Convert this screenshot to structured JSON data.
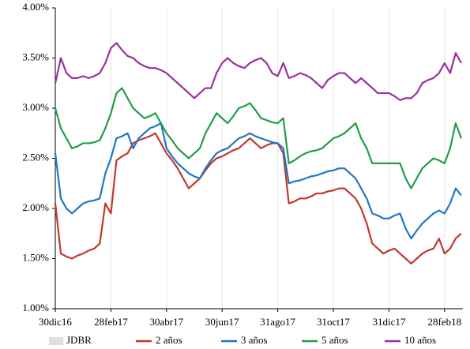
{
  "chart_data": {
    "type": "line",
    "categories": [
      "30dic16",
      null,
      null,
      null,
      null,
      null,
      null,
      null,
      null,
      null,
      "28feb17",
      null,
      null,
      null,
      null,
      null,
      null,
      null,
      null,
      null,
      "30abr17",
      null,
      null,
      null,
      null,
      null,
      null,
      null,
      null,
      null,
      "30jun17",
      null,
      null,
      null,
      null,
      null,
      null,
      null,
      null,
      null,
      "31ago17",
      null,
      null,
      null,
      null,
      null,
      null,
      null,
      null,
      null,
      "31oct17",
      null,
      null,
      null,
      null,
      null,
      null,
      null,
      null,
      null,
      "31dic17",
      null,
      null,
      null,
      null,
      null,
      null,
      null,
      null,
      null,
      "28feb18",
      null,
      null,
      null
    ],
    "ylim": [
      1,
      4
    ],
    "yticks": [
      {
        "value": 1,
        "label": "1.00%"
      },
      {
        "value": 1.5,
        "label": "1.50%"
      },
      {
        "value": 2,
        "label": "2.00%"
      },
      {
        "value": 2.5,
        "label": "2.50%"
      },
      {
        "value": 3,
        "label": "3.00%"
      },
      {
        "value": 3.5,
        "label": "3.50%"
      },
      {
        "value": 4,
        "label": "4.00%"
      }
    ],
    "vertical_grid": true,
    "series": [
      {
        "name": "JDBR",
        "color": "#e0e0e0",
        "values": [
          null,
          null,
          null,
          null,
          null,
          null,
          null,
          null,
          null,
          null,
          null,
          null,
          null,
          null,
          null,
          null,
          null,
          null,
          null,
          null,
          null,
          null,
          null,
          null,
          null,
          null,
          null,
          null,
          null,
          null,
          null,
          null,
          null,
          null,
          null,
          null,
          null,
          null,
          null,
          null,
          null,
          null,
          null,
          null,
          null,
          null,
          null,
          null,
          null,
          null,
          null,
          null,
          null,
          null,
          null,
          null,
          null,
          null,
          null,
          null,
          null,
          null,
          null,
          null,
          null,
          null,
          null,
          null,
          null,
          null,
          null,
          null,
          null,
          null
        ]
      },
      {
        "name": "2 años",
        "color": "#c0392b",
        "values": [
          2.05,
          1.55,
          1.52,
          1.5,
          1.53,
          1.55,
          1.58,
          1.6,
          1.65,
          2.05,
          1.95,
          2.48,
          2.52,
          2.55,
          2.65,
          2.68,
          2.7,
          2.72,
          2.75,
          2.65,
          2.55,
          2.48,
          2.4,
          2.3,
          2.2,
          2.25,
          2.3,
          2.38,
          2.45,
          2.5,
          2.52,
          2.55,
          2.58,
          2.6,
          2.65,
          2.7,
          2.65,
          2.6,
          2.63,
          2.65,
          2.65,
          2.55,
          2.05,
          2.07,
          2.1,
          2.1,
          2.12,
          2.15,
          2.15,
          2.17,
          2.18,
          2.2,
          2.2,
          2.15,
          2.1,
          2.0,
          1.85,
          1.65,
          1.6,
          1.55,
          1.58,
          1.6,
          1.55,
          1.5,
          1.45,
          1.5,
          1.55,
          1.58,
          1.6,
          1.7,
          1.55,
          1.6,
          1.7,
          1.75
        ]
      },
      {
        "name": "3 años",
        "color": "#1f77c4",
        "values": [
          2.55,
          2.1,
          2.0,
          1.95,
          2.0,
          2.05,
          2.07,
          2.08,
          2.1,
          2.35,
          2.5,
          2.7,
          2.72,
          2.75,
          2.6,
          2.7,
          2.75,
          2.8,
          2.82,
          2.85,
          2.6,
          2.52,
          2.45,
          2.4,
          2.35,
          2.32,
          2.3,
          2.4,
          2.48,
          2.55,
          2.58,
          2.6,
          2.65,
          2.7,
          2.72,
          2.75,
          2.72,
          2.7,
          2.68,
          2.66,
          2.65,
          2.6,
          2.25,
          2.27,
          2.28,
          2.3,
          2.32,
          2.33,
          2.35,
          2.37,
          2.38,
          2.4,
          2.4,
          2.35,
          2.3,
          2.2,
          2.1,
          1.95,
          1.93,
          1.9,
          1.9,
          1.93,
          1.95,
          1.8,
          1.7,
          1.78,
          1.85,
          1.9,
          1.95,
          1.98,
          1.95,
          2.05,
          2.2,
          2.13
        ]
      },
      {
        "name": "5 años",
        "color": "#1e9e48",
        "values": [
          3.0,
          2.8,
          2.7,
          2.6,
          2.62,
          2.65,
          2.65,
          2.66,
          2.68,
          2.8,
          2.95,
          3.15,
          3.2,
          3.1,
          3.0,
          2.95,
          2.9,
          2.92,
          2.95,
          2.85,
          2.75,
          2.68,
          2.6,
          2.55,
          2.5,
          2.55,
          2.6,
          2.75,
          2.85,
          2.95,
          2.9,
          2.85,
          2.92,
          3.0,
          3.02,
          3.05,
          2.98,
          2.9,
          2.88,
          2.86,
          2.85,
          2.9,
          2.45,
          2.48,
          2.52,
          2.55,
          2.57,
          2.58,
          2.6,
          2.65,
          2.7,
          2.72,
          2.75,
          2.8,
          2.85,
          2.7,
          2.6,
          2.45,
          2.45,
          2.45,
          2.45,
          2.45,
          2.45,
          2.3,
          2.2,
          2.3,
          2.4,
          2.45,
          2.5,
          2.48,
          2.45,
          2.6,
          2.85,
          2.7
        ]
      },
      {
        "name": "10 años",
        "color": "#9b30a0",
        "values": [
          3.25,
          3.5,
          3.35,
          3.3,
          3.3,
          3.32,
          3.3,
          3.32,
          3.35,
          3.45,
          3.6,
          3.65,
          3.58,
          3.52,
          3.5,
          3.45,
          3.42,
          3.4,
          3.4,
          3.38,
          3.35,
          3.3,
          3.25,
          3.2,
          3.15,
          3.1,
          3.15,
          3.2,
          3.2,
          3.35,
          3.45,
          3.5,
          3.45,
          3.42,
          3.4,
          3.45,
          3.48,
          3.5,
          3.45,
          3.35,
          3.32,
          3.45,
          3.3,
          3.32,
          3.35,
          3.33,
          3.3,
          3.25,
          3.2,
          3.28,
          3.32,
          3.35,
          3.35,
          3.3,
          3.25,
          3.3,
          3.25,
          3.2,
          3.15,
          3.15,
          3.15,
          3.12,
          3.08,
          3.1,
          3.1,
          3.15,
          3.25,
          3.28,
          3.3,
          3.35,
          3.45,
          3.35,
          3.55,
          3.45
        ]
      }
    ]
  }
}
